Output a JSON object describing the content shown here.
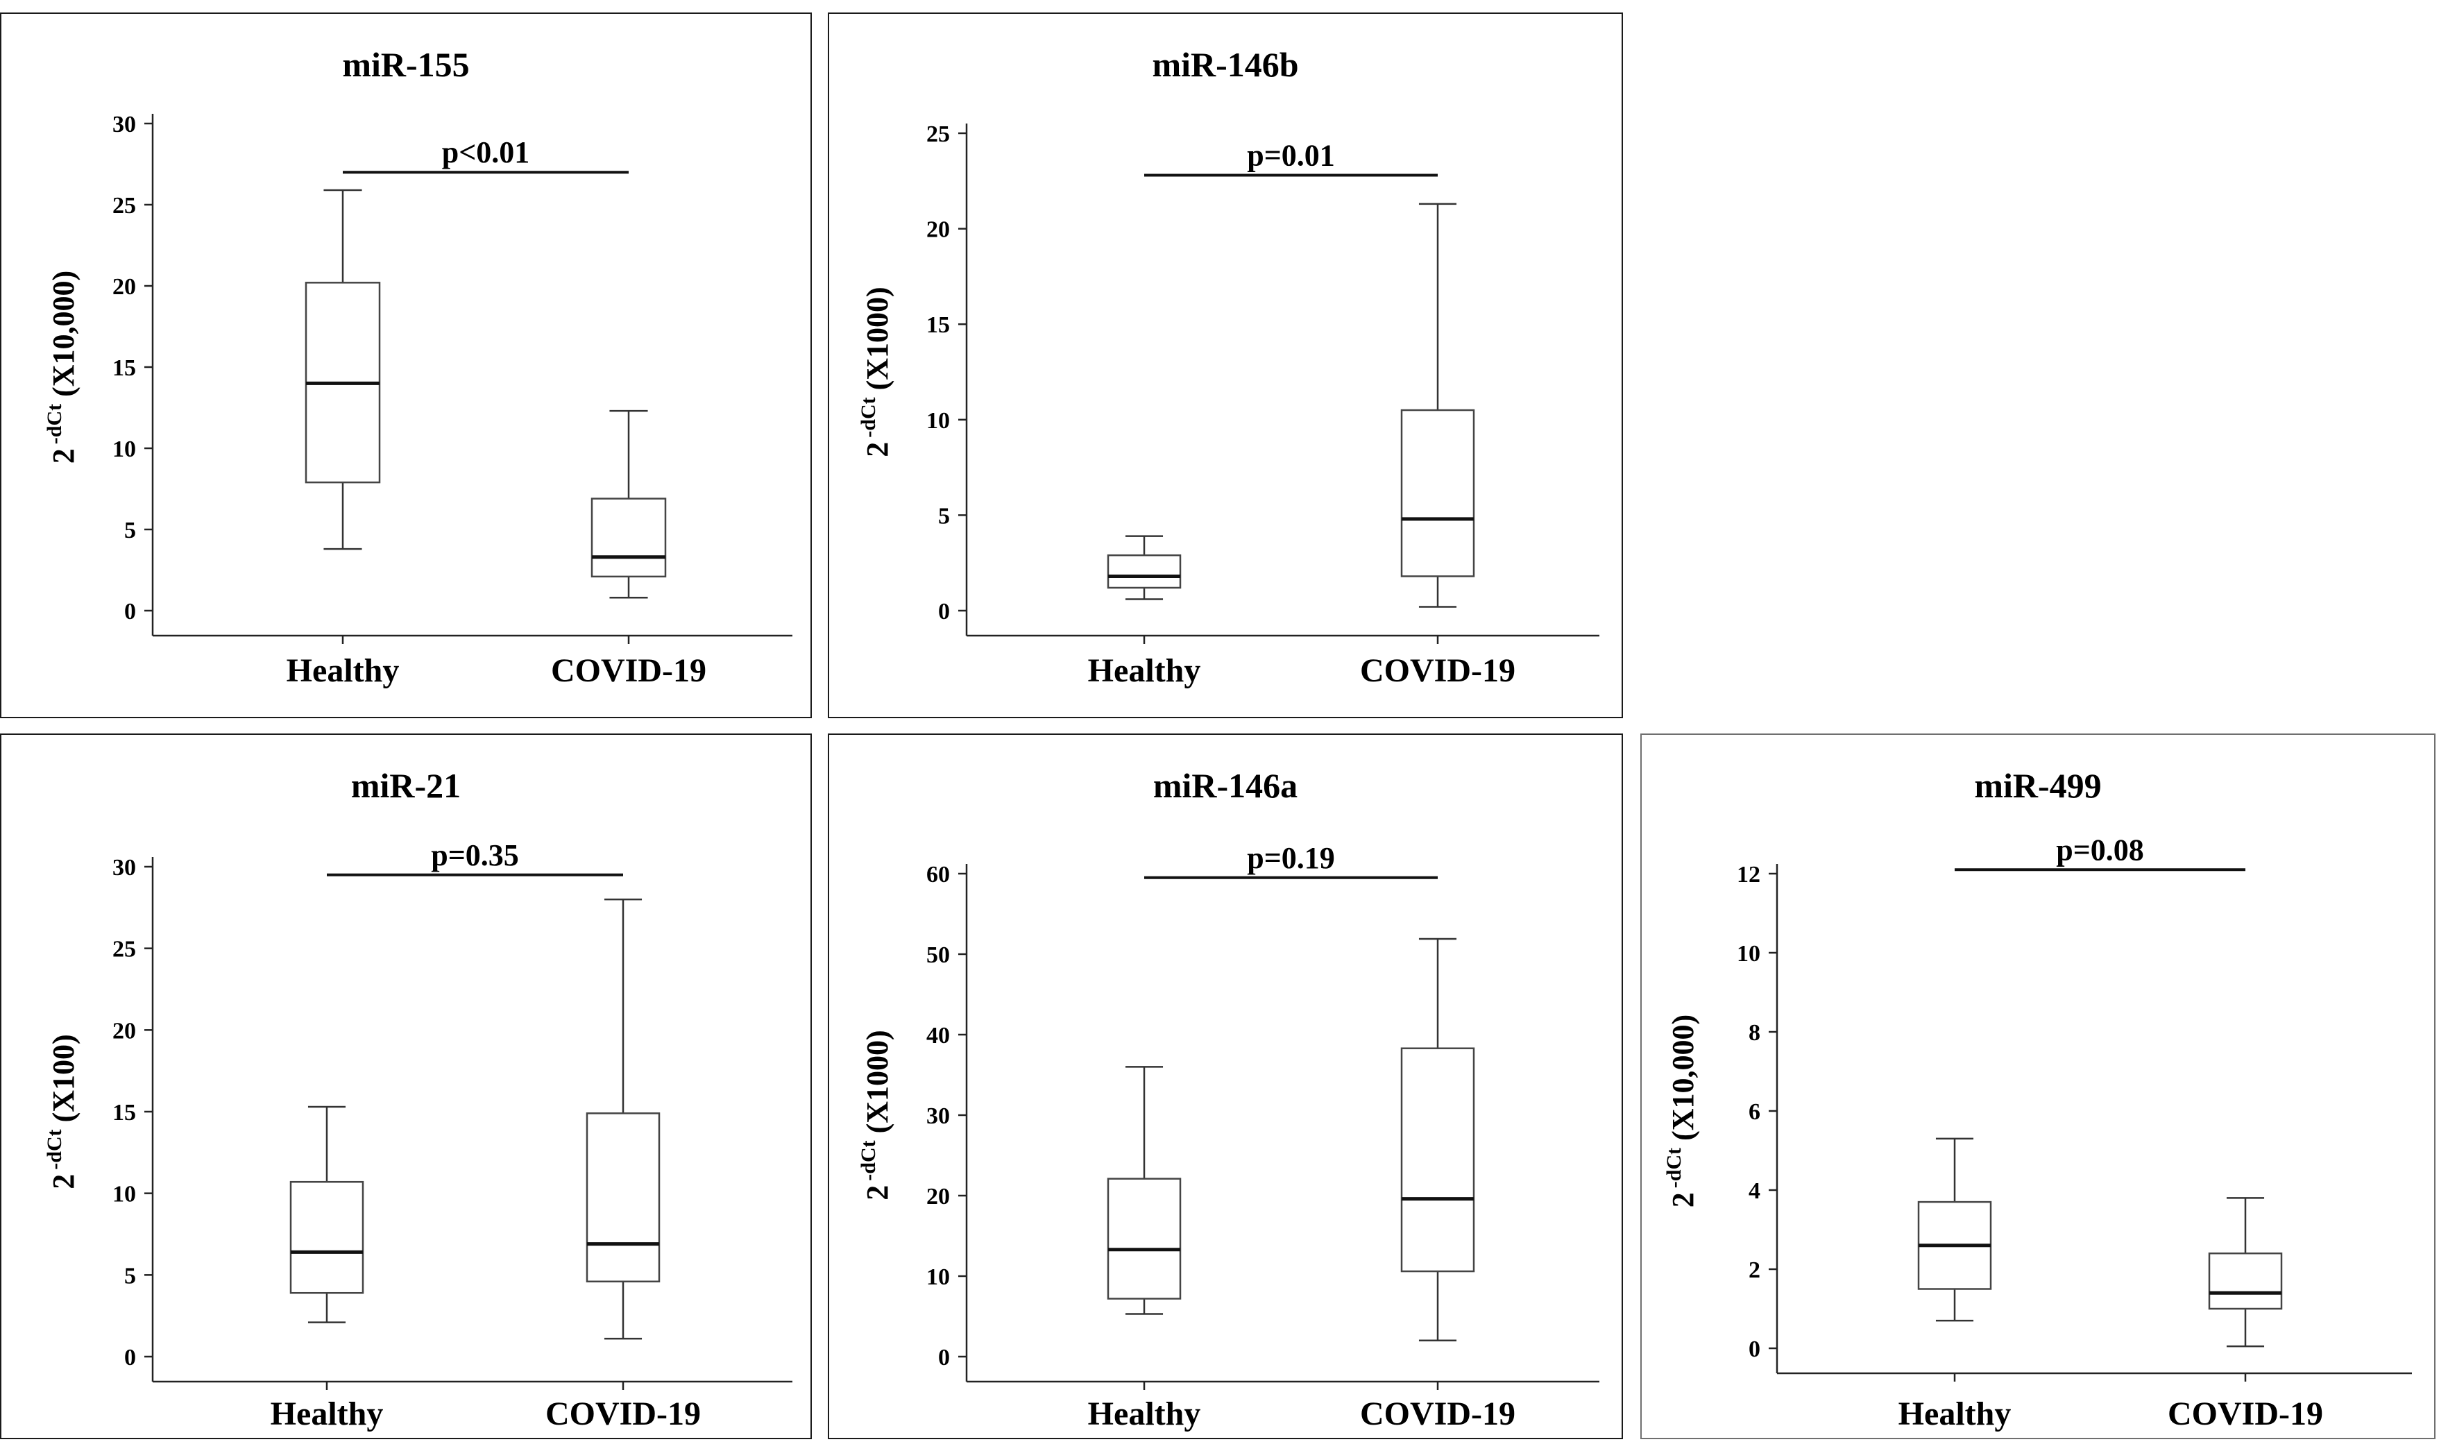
{
  "chart_data": [
    {
      "type": "box",
      "title": "miR-155",
      "ylabel": {
        "base": "2",
        "exponent": "-dCt",
        "unit": "(X10,000)"
      },
      "ylim": [
        0,
        30
      ],
      "yticks": [
        0,
        5,
        10,
        15,
        20,
        25,
        30
      ],
      "categories": [
        "Healthy",
        "COVID-19"
      ],
      "boxes": [
        {
          "name": "Healthy",
          "whisker_low": 3.8,
          "q1": 7.9,
          "median": 14.0,
          "q3": 20.2,
          "whisker_high": 25.9
        },
        {
          "name": "COVID-19",
          "whisker_low": 0.8,
          "q1": 2.1,
          "median": 3.3,
          "q3": 6.9,
          "whisker_high": 12.3
        }
      ],
      "p_value": "p<0.01",
      "bracket_y": 27
    },
    {
      "type": "box",
      "title": "miR-146b",
      "ylabel": {
        "base": "2",
        "exponent": "-dCt",
        "unit": "(X1000)"
      },
      "ylim": [
        0,
        25
      ],
      "yticks": [
        0,
        5,
        10,
        15,
        20,
        25
      ],
      "categories": [
        "Healthy",
        "COVID-19"
      ],
      "boxes": [
        {
          "name": "Healthy",
          "whisker_low": 0.6,
          "q1": 1.2,
          "median": 1.8,
          "q3": 2.9,
          "whisker_high": 3.9
        },
        {
          "name": "COVID-19",
          "whisker_low": 0.2,
          "q1": 1.8,
          "median": 4.8,
          "q3": 10.5,
          "whisker_high": 21.3
        }
      ],
      "p_value": "p=0.01",
      "bracket_y": 22.8
    },
    {
      "type": "box",
      "title": "miR-21",
      "ylabel": {
        "base": "2",
        "exponent": "-dCt",
        "unit": "(X100)"
      },
      "ylim": [
        0,
        30
      ],
      "yticks": [
        0,
        5,
        10,
        15,
        20,
        25,
        30
      ],
      "categories": [
        "Healthy",
        "COVID-19"
      ],
      "boxes": [
        {
          "name": "Healthy",
          "whisker_low": 2.1,
          "q1": 3.9,
          "median": 6.4,
          "q3": 10.7,
          "whisker_high": 15.3
        },
        {
          "name": "COVID-19",
          "whisker_low": 1.1,
          "q1": 4.6,
          "median": 6.9,
          "q3": 14.9,
          "whisker_high": 28.0
        }
      ],
      "p_value": "p=0.35",
      "bracket_y": 29.5
    },
    {
      "type": "box",
      "title": "miR-146a",
      "ylabel": {
        "base": "2",
        "exponent": "-dCt",
        "unit": "(X1000)"
      },
      "ylim": [
        0,
        60
      ],
      "yticks": [
        0,
        10,
        20,
        30,
        40,
        50,
        60
      ],
      "categories": [
        "Healthy",
        "COVID-19"
      ],
      "boxes": [
        {
          "name": "Healthy",
          "whisker_low": 5.3,
          "q1": 7.2,
          "median": 13.3,
          "q3": 22.1,
          "whisker_high": 36.0
        },
        {
          "name": "COVID-19",
          "whisker_low": 2.0,
          "q1": 10.6,
          "median": 19.6,
          "q3": 38.3,
          "whisker_high": 51.9
        }
      ],
      "p_value": "p=0.19",
      "bracket_y": 59.5
    },
    {
      "type": "box",
      "title": "miR-499",
      "ylabel": {
        "base": "2",
        "exponent": "-dCt",
        "unit": "(X10,000)"
      },
      "ylim": [
        0,
        12
      ],
      "yticks": [
        0,
        2,
        4,
        6,
        8,
        10,
        12
      ],
      "categories": [
        "Healthy",
        "COVID-19"
      ],
      "boxes": [
        {
          "name": "Healthy",
          "whisker_low": 0.7,
          "q1": 1.5,
          "median": 2.6,
          "q3": 3.7,
          "whisker_high": 5.3
        },
        {
          "name": "COVID-19",
          "whisker_low": 0.05,
          "q1": 1.0,
          "median": 1.4,
          "q3": 2.4,
          "whisker_high": 3.8
        }
      ],
      "p_value": "p=0.08",
      "bracket_y": 12.1
    }
  ]
}
